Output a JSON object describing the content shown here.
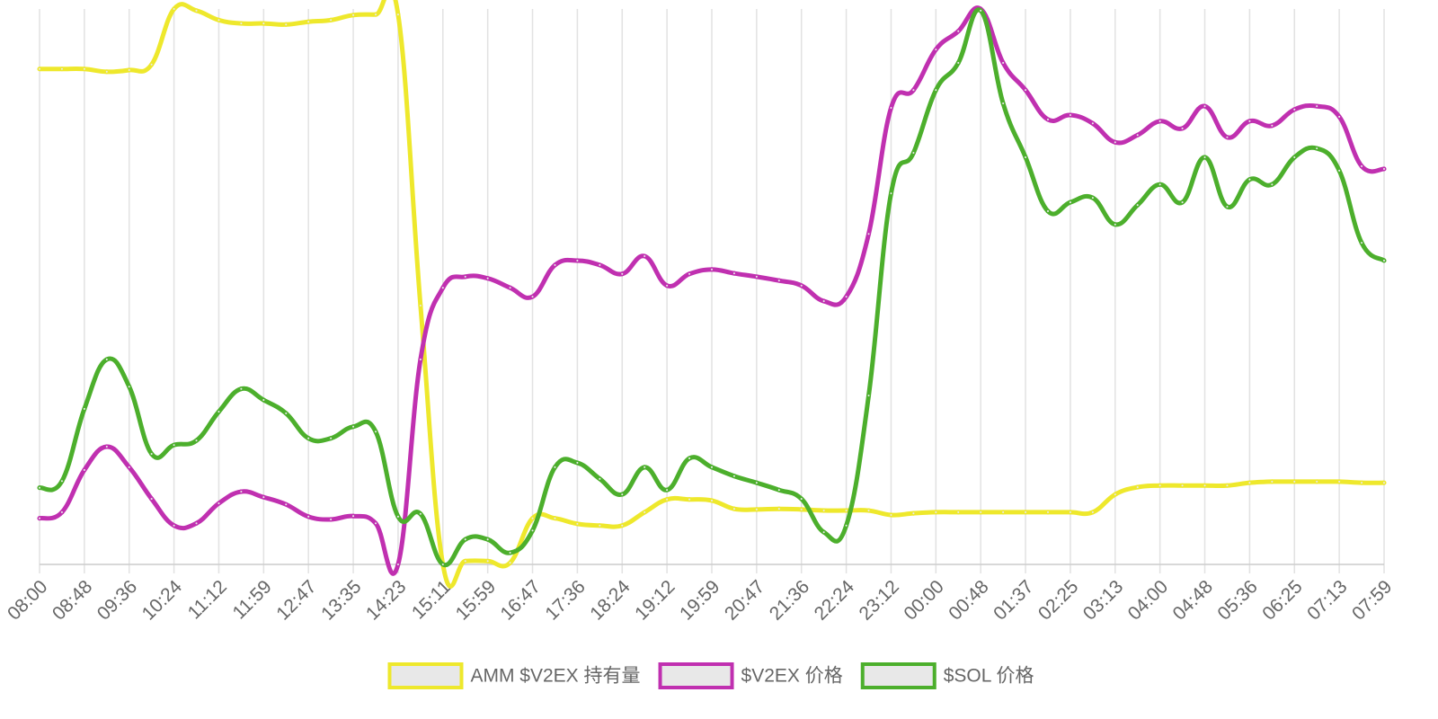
{
  "chart_data": {
    "type": "line",
    "categories": [
      "08:00",
      null,
      "08:48",
      null,
      "09:36",
      null,
      "10:24",
      null,
      "11:12",
      null,
      "11:59",
      null,
      "12:47",
      null,
      "13:35",
      null,
      "14:23",
      null,
      "15:11",
      null,
      "15:59",
      null,
      "16:47",
      null,
      "17:36",
      null,
      "18:24",
      null,
      "19:12",
      null,
      "19:59",
      null,
      "20:47",
      null,
      "21:36",
      null,
      "22:24",
      null,
      "23:12",
      null,
      "00:00",
      null,
      "00:48",
      null,
      "01:37",
      null,
      "02:25",
      null,
      "03:13",
      null,
      "04:00",
      null,
      "04:48",
      null,
      "05:36",
      null,
      "06:25",
      null,
      "07:13",
      null,
      "07:59"
    ],
    "series": [
      {
        "name": "AMM $V2EX 持有量",
        "color": "#eee82c",
        "values": [
          89.2,
          89.2,
          89.2,
          88.7,
          89,
          90,
          100,
          99.7,
          98,
          97.4,
          97.4,
          97.2,
          97.7,
          98,
          98.9,
          99,
          99,
          46.6,
          0,
          0.6,
          0.6,
          0.3,
          8.3,
          8.3,
          7.3,
          7,
          7,
          9.4,
          11.7,
          11.7,
          11.5,
          10,
          9.9,
          10,
          9.9,
          9.7,
          9.7,
          9.7,
          8.9,
          9.2,
          9.4,
          9.4,
          9.4,
          9.4,
          9.4,
          9.4,
          9.4,
          9.4,
          12.6,
          13.9,
          14.2,
          14.2,
          14.2,
          14.2,
          14.7,
          14.9,
          14.9,
          14.9,
          14.9,
          14.7,
          14.7
        ]
      },
      {
        "name": "$V2EX 价格",
        "color": "#c030b0",
        "values": [
          8.3,
          9.4,
          17,
          21.2,
          17.5,
          11.8,
          7,
          7.4,
          11,
          13.1,
          12.1,
          10.8,
          8.6,
          8.1,
          8.7,
          7.4,
          0,
          36.9,
          49.8,
          51.8,
          51.5,
          49.8,
          48.2,
          53.9,
          54.7,
          53.9,
          52.3,
          55.5,
          50.2,
          52.3,
          53.1,
          52.4,
          51.8,
          51.1,
          50.2,
          47.4,
          48.2,
          59.5,
          82.2,
          85.4,
          92.7,
          96,
          100,
          90.3,
          85.4,
          80.1,
          80.9,
          79.4,
          76,
          77.3,
          79.8,
          78.5,
          82.5,
          76.9,
          79.8,
          79,
          81.9,
          82.5,
          80.6,
          71.7,
          71.2
        ]
      },
      {
        "name": "$SOL 价格",
        "color": "#4caf2c",
        "values": [
          13.8,
          15,
          28,
          36.9,
          32,
          19.9,
          21.5,
          22.3,
          27.5,
          31.6,
          29.6,
          27.2,
          22.7,
          22.7,
          24.8,
          23.9,
          8.6,
          9.1,
          0,
          4.5,
          4.5,
          2.1,
          6.1,
          17.5,
          18.3,
          15.4,
          12.6,
          17.5,
          13.4,
          19.1,
          17.5,
          15.9,
          14.7,
          13.4,
          11.8,
          5.8,
          7,
          30.4,
          66.8,
          74.1,
          85.4,
          90.3,
          99.7,
          83,
          73.3,
          63.6,
          65.2,
          66,
          61.2,
          64.7,
          68.4,
          65.2,
          73.3,
          64.4,
          69.3,
          68.4,
          73.3,
          74.9,
          70.9,
          57.9,
          54.7
        ]
      }
    ],
    "ylim": [
      0,
      100
    ],
    "grid": true,
    "legend": "bottom"
  }
}
